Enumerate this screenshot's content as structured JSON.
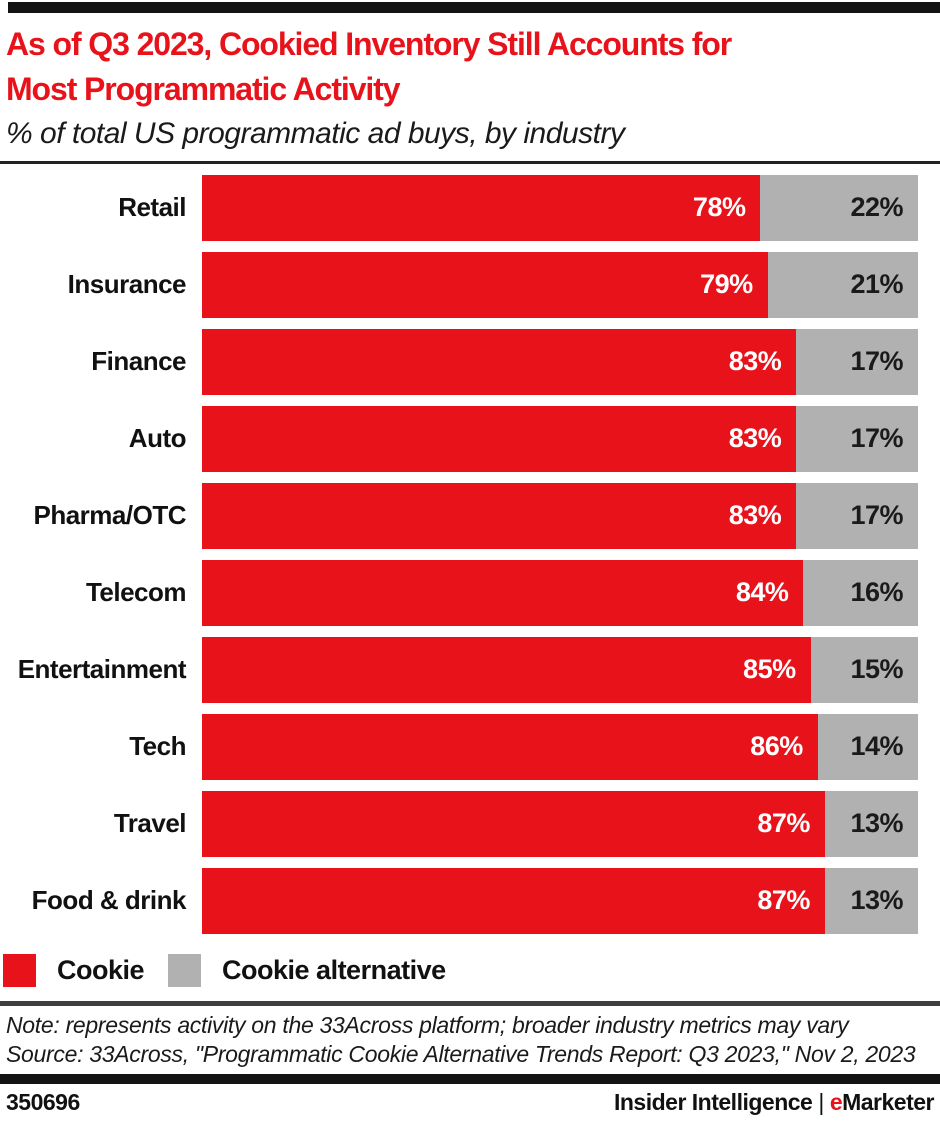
{
  "header": {
    "title_line1": "As of Q3 2023, Cookied Inventory Still Accounts for",
    "title_line2": "Most Programmatic Activity",
    "subtitle": "% of total US programmatic ad buys, by industry"
  },
  "chart_data": {
    "type": "bar",
    "orientation": "horizontal_stacked",
    "title": "As of Q3 2023, Cookied Inventory Still Accounts for Most Programmatic Activity",
    "subtitle": "% of total US programmatic ad buys, by industry",
    "categories": [
      "Retail",
      "Insurance",
      "Finance",
      "Auto",
      "Pharma/OTC",
      "Telecom",
      "Entertainment",
      "Tech",
      "Travel",
      "Food & drink"
    ],
    "series": [
      {
        "name": "Cookie",
        "color": "#e8121b",
        "values": [
          78,
          79,
          83,
          83,
          83,
          84,
          85,
          86,
          87,
          87
        ]
      },
      {
        "name": "Cookie alternative",
        "color": "#b1b1b1",
        "values": [
          22,
          21,
          17,
          17,
          17,
          16,
          15,
          14,
          13,
          13
        ]
      }
    ],
    "value_suffix": "%",
    "xlim": [
      0,
      100
    ],
    "grid": false,
    "legend_position": "bottom"
  },
  "notes": {
    "note": "Note: represents activity on the 33Across platform; broader industry metrics may vary",
    "source": "Source: 33Across, \"Programmatic Cookie Alternative Trends Report: Q3 2023,\" Nov 2, 2023"
  },
  "footer": {
    "chart_id": "350696",
    "brand_primary": "Insider Intelligence",
    "separator": "|",
    "brand_e": "e",
    "brand_rest": "Marketer"
  },
  "colors": {
    "accent_red": "#e8121b",
    "bar_gray": "#b1b1b1",
    "bar_black": "#131313",
    "divider_dark": "#3e3e3e"
  }
}
